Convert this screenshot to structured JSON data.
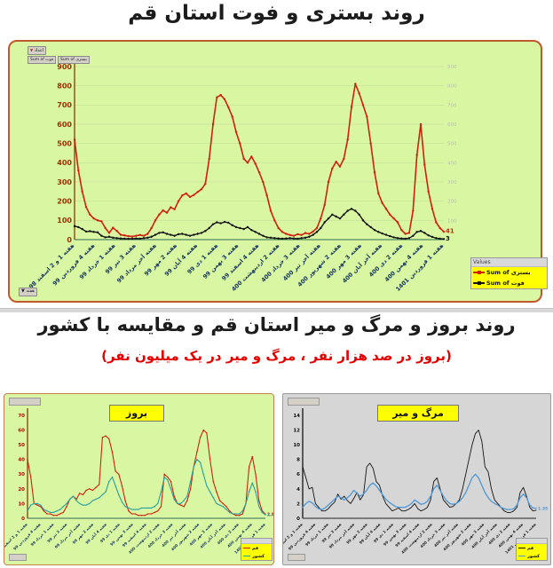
{
  "title_top": "روند بستری و فوت استان قم",
  "section2": {
    "title": "روند بروز و مرگ و میر استان قم و مقایسه با کشور",
    "subtitle": "(بروز در صد هزار نفر ، مرگ و میر در یک میلیون نفر)"
  },
  "icons": {
    "dropdown": "▼"
  },
  "main_chart": {
    "filter_label": "اعداد",
    "field_buttons": [
      "Sum of فوت",
      "Sum of بستری"
    ],
    "week_label": "هفته",
    "legend_header": "Values"
  },
  "colors": {
    "chart_bg_green": "#d9f7a3",
    "panel_border": "#c05a2e",
    "bastari_red": "#d02010",
    "fot_black": "#141414",
    "qom_red": "#d02010",
    "keshvar_teal": "#2ba0a0",
    "qom_black": "#141414",
    "keshvar_blue": "#4f97d4",
    "legend_yellow": "#ffff00",
    "subtitle_red": "#e50000"
  },
  "chart_data": [
    {
      "id": "hospitalization-death",
      "type": "line",
      "title": "روند بستری و فوت استان قم",
      "ylim": [
        0,
        900
      ],
      "ytick": 100,
      "grid": true,
      "legend_position": "bottom-right",
      "categories": [
        "هفته 1 و 2 اسفند 98",
        "هفته 4 فروردین 99",
        "هفته 1 خرداد 99",
        "هفته 3 تیر 99",
        "هفته آخر مرداد 99",
        "هفته 2 مهر 99",
        "هفته 4 آبان 99",
        "هفته 1 دی 99",
        "هفته 3 بهمن 99",
        "هفته 4 اسفند 99",
        "هفته 2 اردیبهشت 400",
        "هفته 3 خرداد 400",
        "هفته آخر تیر 400",
        "هفته 2 شهریور 400",
        "هفته 3 مهر 400",
        "هفته آخر آبان 400",
        "هفته 2 دی 400",
        "هفته 4 بهمن 400",
        "هفته 1 فروردین 1401"
      ],
      "series": [
        {
          "name": "Sum of بستری",
          "color": "#d02010",
          "end_label": "41",
          "values": [
            520,
            360,
            250,
            170,
            130,
            110,
            100,
            95,
            60,
            35,
            62,
            45,
            25,
            22,
            18,
            16,
            20,
            24,
            20,
            30,
            60,
            100,
            130,
            152,
            140,
            168,
            158,
            200,
            230,
            240,
            222,
            232,
            248,
            262,
            290,
            420,
            600,
            740,
            752,
            730,
            688,
            640,
            560,
            500,
            420,
            400,
            432,
            395,
            350,
            300,
            230,
            150,
            100,
            60,
            40,
            30,
            24,
            20,
            28,
            24,
            34,
            30,
            42,
            60,
            110,
            180,
            300,
            370,
            405,
            380,
            420,
            520,
            690,
            810,
            760,
            700,
            640,
            500,
            350,
            240,
            190,
            160,
            130,
            110,
            90,
            50,
            30,
            35,
            150,
            440,
            600,
            390,
            250,
            160,
            90,
            60,
            41
          ]
        },
        {
          "name": "Sum of فوت",
          "color": "#141414",
          "end_label": "3",
          "values": [
            70,
            65,
            55,
            42,
            44,
            40,
            38,
            20,
            12,
            15,
            10,
            8,
            6,
            5,
            4,
            5,
            6,
            5,
            8,
            10,
            15,
            25,
            35,
            38,
            30,
            25,
            20,
            28,
            30,
            25,
            20,
            25,
            30,
            35,
            45,
            60,
            80,
            90,
            85,
            92,
            88,
            75,
            65,
            60,
            55,
            65,
            50,
            40,
            30,
            20,
            12,
            10,
            8,
            6,
            5,
            6,
            8,
            6,
            5,
            8,
            10,
            15,
            25,
            40,
            60,
            90,
            110,
            130,
            120,
            110,
            130,
            150,
            160,
            150,
            130,
            100,
            80,
            65,
            50,
            40,
            32,
            25,
            18,
            12,
            8,
            6,
            5,
            8,
            20,
            40,
            45,
            35,
            22,
            14,
            8,
            5,
            3
          ]
        }
      ]
    },
    {
      "id": "incidence",
      "type": "line",
      "title": "بروز",
      "ylim": [
        0,
        70
      ],
      "ytick": 10,
      "grid": false,
      "legend_position": "bottom-right",
      "categories": [
        "هفته 1 و 2 اسفند 98",
        "هفته 4 فروردین 99",
        "هفته 1 خرداد 99",
        "هفته 3 تیر 99",
        "هفته آخر مرداد 99",
        "هفته 2 مهر 99",
        "هفته 4 آبان 99",
        "هفته 1 دی 99",
        "هفته 3 بهمن 99",
        "هفته 4 اسفند 99",
        "هفته 2 اردیبهشت 400",
        "هفته 3 خرداد 400",
        "هفته آخر تیر 400",
        "هفته 2 شهریور 400",
        "هفته 3 مهر 400",
        "هفته آخر آبان 400",
        "هفته 2 دی 400",
        "هفته 4 بهمن 400",
        "هفته 1 فروردین 1401"
      ],
      "series": [
        {
          "name": "قم",
          "color": "#d02010",
          "end_label": "2.85",
          "values": [
            40,
            28,
            10,
            9,
            8,
            5,
            3,
            3,
            2,
            2,
            3,
            4,
            8,
            13,
            15,
            13,
            17,
            16,
            19,
            20,
            19,
            21,
            23,
            55,
            56,
            54,
            45,
            32,
            30,
            22,
            12,
            5,
            3,
            3,
            2,
            2,
            2,
            3,
            3,
            4,
            5,
            8,
            30,
            28,
            25,
            15,
            10,
            9,
            8,
            12,
            20,
            35,
            45,
            55,
            60,
            58,
            40,
            25,
            18,
            12,
            10,
            8,
            5,
            3,
            2,
            2,
            3,
            10,
            35,
            42,
            30,
            12,
            5,
            2.85
          ]
        },
        {
          "name": "کشور",
          "color": "#2ba0a0",
          "end_label": "2.40",
          "values": [
            5,
            9,
            10,
            10,
            9,
            6,
            5,
            4,
            4,
            5,
            6,
            8,
            10,
            13,
            15,
            12,
            10,
            9,
            9,
            10,
            12,
            13,
            14,
            16,
            18,
            25,
            28,
            22,
            16,
            11,
            8,
            7,
            6,
            6,
            6,
            7,
            7,
            7,
            7,
            8,
            10,
            18,
            28,
            26,
            20,
            13,
            10,
            10,
            12,
            15,
            25,
            35,
            40,
            38,
            30,
            22,
            18,
            14,
            10,
            9,
            8,
            6,
            4,
            3,
            3,
            3,
            5,
            10,
            18,
            24,
            18,
            8,
            4,
            2.4
          ]
        }
      ]
    },
    {
      "id": "mortality",
      "type": "line",
      "title": "مرگ و میر",
      "ylim": [
        0,
        14
      ],
      "ytick": 2,
      "grid": false,
      "legend_position": "bottom-right",
      "categories": [
        "هفته 1 و 2 اسفند 98",
        "هفته 4 فروردین 99",
        "هفته 1 خرداد 99",
        "هفته 3 تیر 99",
        "هفته آخر مرداد 99",
        "هفته 2 مهر 99",
        "هفته 4 آبان 99",
        "هفته 1 دی 99",
        "هفته 3 بهمن 99",
        "هفته 4 اسفند 99",
        "هفته 2 اردیبهشت 400",
        "هفته 3 خرداد 400",
        "هفته آخر تیر 400",
        "هفته 2 شهریور 400",
        "هفته 3 مهر 400",
        "هفته آخر آبان 400",
        "هفته 2 دی 400",
        "هفته 4 بهمن 400",
        "هفته 1 فروردین 1401"
      ],
      "series": [
        {
          "name": "قم",
          "color": "#141414",
          "end_label": "",
          "values": [
            7,
            5.5,
            4,
            4.2,
            2,
            1.5,
            1,
            1,
            1.3,
            1.8,
            2.2,
            3.3,
            2.6,
            3,
            2.4,
            2,
            2.7,
            3.5,
            2.5,
            3.2,
            7,
            7.5,
            6.8,
            5,
            4.5,
            3,
            2,
            1.5,
            1,
            1.2,
            1.4,
            1,
            1,
            1.2,
            1.5,
            2,
            1.3,
            1,
            1.2,
            1.5,
            2.5,
            5,
            5.5,
            4,
            2.5,
            2,
            1.5,
            1.6,
            2,
            2.5,
            4,
            6,
            8,
            10,
            11.5,
            12,
            10.5,
            7,
            6.3,
            4,
            2.5,
            2,
            1.5,
            1,
            0.8,
            0.8,
            1,
            1.5,
            3.5,
            4.2,
            3,
            1.5,
            1,
            1.1
          ]
        },
        {
          "name": "کشور",
          "color": "#4f97d4",
          "end_label": "1.35",
          "values": [
            1.5,
            2,
            2.3,
            2.1,
            1.6,
            1.3,
            1.2,
            1.4,
            1.8,
            2.2,
            2.6,
            3,
            2.8,
            2.5,
            2.8,
            3.2,
            3.8,
            3.4,
            3,
            3.3,
            3.8,
            4.5,
            4.8,
            4.4,
            3.8,
            3.2,
            2.6,
            2.2,
            1.9,
            1.6,
            1.5,
            1.5,
            1.5,
            1.7,
            2,
            2.5,
            2.2,
            1.9,
            2,
            2.3,
            3,
            4,
            4.5,
            3.8,
            3,
            2.4,
            2,
            1.9,
            2,
            2.3,
            2.8,
            3.5,
            4.5,
            5.5,
            6,
            5.5,
            4.5,
            3.5,
            2.8,
            2.3,
            2,
            1.8,
            1.5,
            1.3,
            1.2,
            1.2,
            1.3,
            1.8,
            2.8,
            3.3,
            2.8,
            1.8,
            1.4,
            1.35
          ]
        }
      ]
    }
  ]
}
